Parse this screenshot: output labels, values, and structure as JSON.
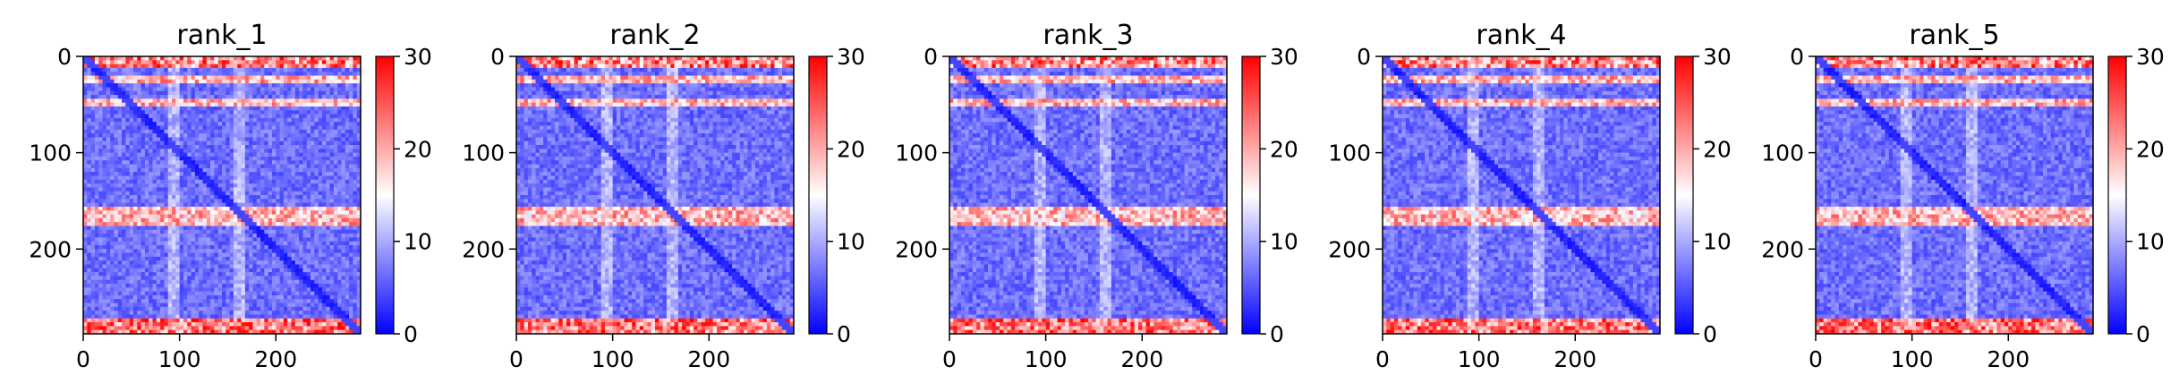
{
  "chart_data": [
    {
      "type": "heatmap",
      "title": "rank_1",
      "xlim": [
        0,
        288
      ],
      "ylim": [
        288,
        0
      ],
      "x_ticks": [
        0,
        100,
        200
      ],
      "y_ticks": [
        0,
        100,
        200
      ],
      "colorbar": {
        "range": [
          0,
          30
        ],
        "ticks": [
          0,
          10,
          20,
          30
        ],
        "colormap": "bwr"
      },
      "pattern": {
        "top_band": [
          0,
          12
        ],
        "rows_high": [
          [
            20,
            28
          ],
          [
            45,
            52
          ],
          [
            155,
            175
          ]
        ],
        "bottom_band": [
          272,
          288
        ],
        "col_light": [
          [
            90,
            100
          ],
          [
            155,
            170
          ]
        ]
      }
    },
    {
      "type": "heatmap",
      "title": "rank_2",
      "xlim": [
        0,
        288
      ],
      "ylim": [
        288,
        0
      ],
      "x_ticks": [
        0,
        100,
        200
      ],
      "y_ticks": [
        0,
        100,
        200
      ],
      "colorbar": {
        "range": [
          0,
          30
        ],
        "ticks": [
          0,
          10,
          20,
          30
        ],
        "colormap": "bwr"
      },
      "pattern": {
        "top_band": [
          0,
          12
        ],
        "rows_high": [
          [
            20,
            28
          ],
          [
            45,
            52
          ],
          [
            155,
            175
          ]
        ],
        "bottom_band": [
          272,
          288
        ],
        "col_light": [
          [
            90,
            100
          ],
          [
            155,
            170
          ]
        ]
      }
    },
    {
      "type": "heatmap",
      "title": "rank_3",
      "xlim": [
        0,
        288
      ],
      "ylim": [
        288,
        0
      ],
      "x_ticks": [
        0,
        100,
        200
      ],
      "y_ticks": [
        0,
        100,
        200
      ],
      "colorbar": {
        "range": [
          0,
          30
        ],
        "ticks": [
          0,
          10,
          20,
          30
        ],
        "colormap": "bwr"
      },
      "pattern": {
        "top_band": [
          0,
          12
        ],
        "rows_high": [
          [
            20,
            28
          ],
          [
            45,
            52
          ],
          [
            155,
            175
          ]
        ],
        "bottom_band": [
          272,
          288
        ],
        "col_light": [
          [
            90,
            100
          ],
          [
            155,
            170
          ]
        ]
      }
    },
    {
      "type": "heatmap",
      "title": "rank_4",
      "xlim": [
        0,
        288
      ],
      "ylim": [
        288,
        0
      ],
      "x_ticks": [
        0,
        100,
        200
      ],
      "y_ticks": [
        0,
        100,
        200
      ],
      "colorbar": {
        "range": [
          0,
          30
        ],
        "ticks": [
          0,
          10,
          20,
          30
        ],
        "colormap": "bwr"
      },
      "pattern": {
        "top_band": [
          0,
          12
        ],
        "rows_high": [
          [
            20,
            28
          ],
          [
            45,
            52
          ],
          [
            155,
            175
          ]
        ],
        "bottom_band": [
          272,
          288
        ],
        "col_light": [
          [
            90,
            100
          ],
          [
            155,
            170
          ]
        ]
      }
    },
    {
      "type": "heatmap",
      "title": "rank_5",
      "xlim": [
        0,
        288
      ],
      "ylim": [
        288,
        0
      ],
      "x_ticks": [
        0,
        100,
        200
      ],
      "y_ticks": [
        0,
        100,
        200
      ],
      "colorbar": {
        "range": [
          0,
          30
        ],
        "ticks": [
          0,
          10,
          20,
          30
        ],
        "colormap": "bwr"
      },
      "pattern": {
        "top_band": [
          0,
          12
        ],
        "rows_high": [
          [
            20,
            28
          ],
          [
            45,
            52
          ],
          [
            155,
            175
          ]
        ],
        "bottom_band": [
          272,
          288
        ],
        "col_light": [
          [
            90,
            100
          ],
          [
            155,
            170
          ]
        ]
      }
    }
  ]
}
